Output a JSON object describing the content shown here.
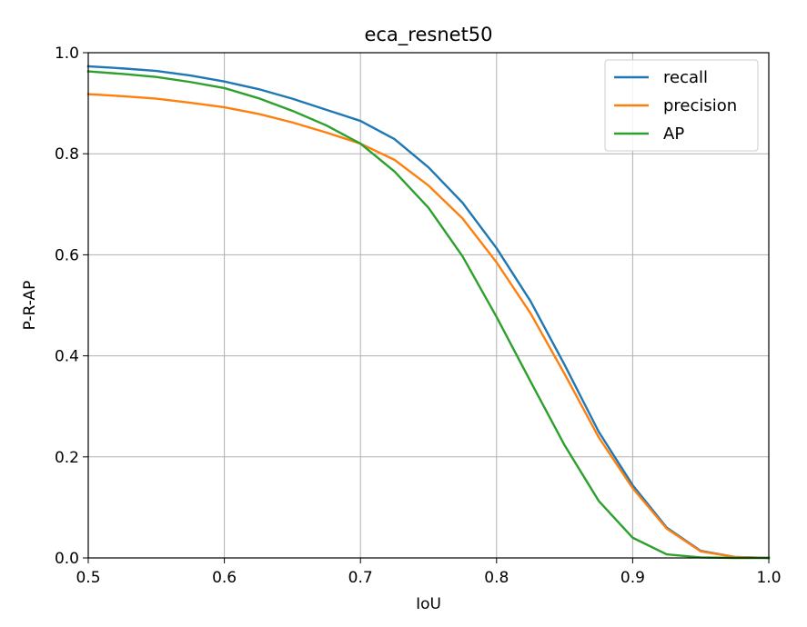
{
  "chart_data": {
    "type": "line",
    "title": "eca_resnet50",
    "xlabel": "IoU",
    "ylabel": "P-R-AP",
    "xlim": [
      0.5,
      1.0
    ],
    "ylim": [
      0.0,
      1.0
    ],
    "grid": true,
    "legend_position": "top-right",
    "x_ticks": [
      "0.5",
      "0.6",
      "0.7",
      "0.8",
      "0.9",
      "1.0"
    ],
    "y_ticks": [
      "0.0",
      "0.2",
      "0.4",
      "0.6",
      "0.8",
      "1.0"
    ],
    "series": [
      {
        "name": "recall",
        "color": "#1f77b4",
        "x": [
          0.5,
          0.525,
          0.55,
          0.575,
          0.6,
          0.625,
          0.65,
          0.675,
          0.7,
          0.725,
          0.75,
          0.775,
          0.8,
          0.825,
          0.85,
          0.875,
          0.9,
          0.925,
          0.95,
          0.975,
          1.0
        ],
        "y": [
          0.973,
          0.969,
          0.964,
          0.955,
          0.943,
          0.928,
          0.909,
          0.887,
          0.865,
          0.829,
          0.773,
          0.703,
          0.613,
          0.508,
          0.382,
          0.25,
          0.144,
          0.06,
          0.014,
          0.002,
          0.0
        ]
      },
      {
        "name": "precision",
        "color": "#ff7f0e",
        "x": [
          0.5,
          0.525,
          0.55,
          0.575,
          0.6,
          0.625,
          0.65,
          0.675,
          0.7,
          0.725,
          0.75,
          0.775,
          0.8,
          0.825,
          0.85,
          0.875,
          0.9,
          0.925,
          0.95,
          0.975,
          1.0
        ],
        "y": [
          0.918,
          0.914,
          0.909,
          0.901,
          0.892,
          0.879,
          0.862,
          0.842,
          0.82,
          0.788,
          0.737,
          0.672,
          0.585,
          0.484,
          0.364,
          0.239,
          0.138,
          0.058,
          0.013,
          0.002,
          0.0
        ]
      },
      {
        "name": "AP",
        "color": "#2ca02c",
        "x": [
          0.5,
          0.525,
          0.55,
          0.575,
          0.6,
          0.625,
          0.65,
          0.675,
          0.7,
          0.725,
          0.75,
          0.775,
          0.8,
          0.825,
          0.85,
          0.875,
          0.9,
          0.925,
          0.95,
          0.975,
          1.0
        ],
        "y": [
          0.963,
          0.958,
          0.952,
          0.942,
          0.93,
          0.91,
          0.885,
          0.856,
          0.82,
          0.765,
          0.693,
          0.597,
          0.477,
          0.349,
          0.223,
          0.113,
          0.04,
          0.007,
          0.001,
          0.0,
          0.0
        ]
      }
    ]
  }
}
